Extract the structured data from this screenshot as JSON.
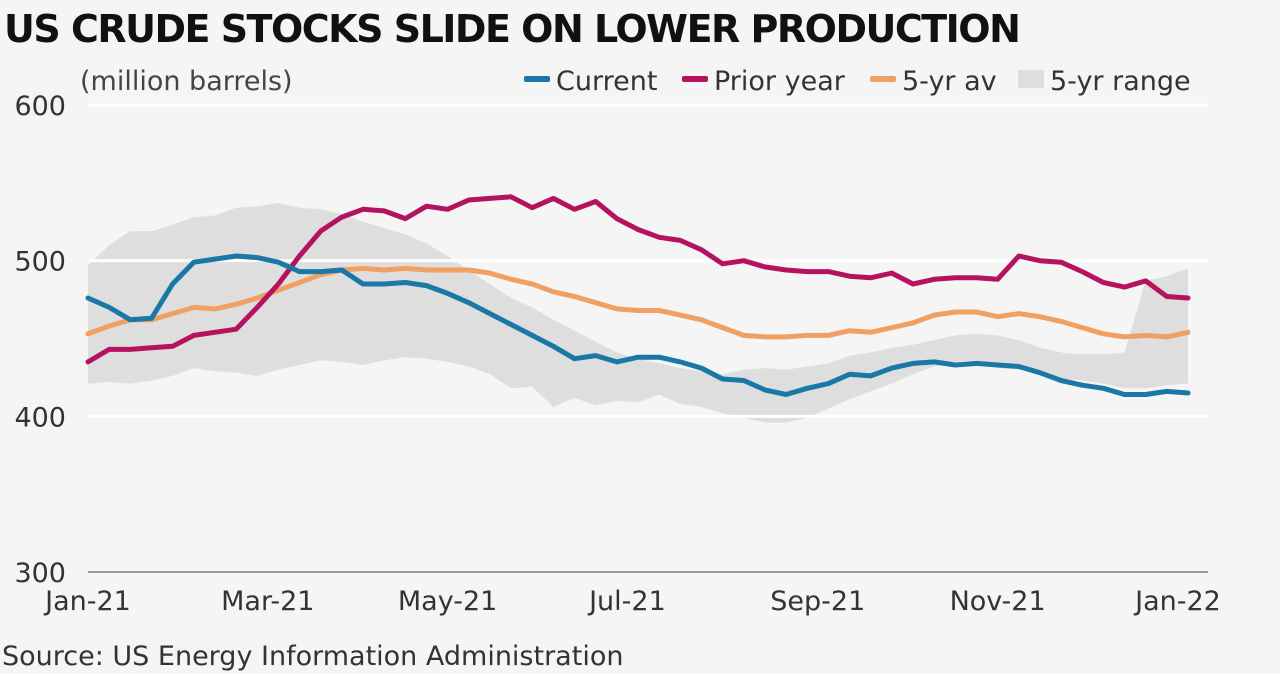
{
  "title": "US CRUDE STOCKS SLIDE ON LOWER PRODUCTION",
  "unit_label": "(million barrels)",
  "source": "Source: US Energy Information Administration",
  "legend": [
    {
      "label": "Current",
      "color": "#1a78a6",
      "kind": "line"
    },
    {
      "label": "Prior year",
      "color": "#b5135f",
      "kind": "line"
    },
    {
      "label": "5-yr av",
      "color": "#f0a062",
      "kind": "line"
    },
    {
      "label": "5-yr range",
      "color": "#dedede",
      "kind": "area"
    }
  ],
  "chart_data": {
    "type": "line",
    "title": "US CRUDE STOCKS SLIDE ON LOWER PRODUCTION",
    "ylabel": "(million barrels)",
    "ylim": [
      300,
      600
    ],
    "yticks": [
      300,
      400,
      500,
      600
    ],
    "grid": true,
    "legend_position": "top-right",
    "x_tick_labels": [
      "Jan-21",
      "Mar-21",
      "May-21",
      "Jul-21",
      "Sep-21",
      "Nov-21",
      "Jan-22"
    ],
    "x_tick_weeks": [
      0,
      8.5,
      17,
      25.5,
      34.5,
      43,
      52
    ],
    "weeks": 52,
    "series": [
      {
        "name": "Current",
        "color": "#1a78a6",
        "values": [
          476,
          470,
          462,
          463,
          485,
          499,
          501,
          503,
          502,
          499,
          493,
          493,
          494,
          485,
          485,
          486,
          484,
          479,
          473,
          466,
          459,
          452,
          445,
          437,
          439,
          435,
          438,
          438,
          435,
          431,
          424,
          423,
          417,
          414,
          418,
          421,
          427,
          426,
          431,
          434,
          435,
          433,
          434,
          433,
          432,
          428,
          423,
          420,
          418,
          414,
          414,
          416,
          415
        ]
      },
      {
        "name": "Prior year",
        "color": "#b5135f",
        "values": [
          435,
          443,
          443,
          444,
          445,
          452,
          454,
          456,
          470,
          485,
          503,
          519,
          528,
          533,
          532,
          527,
          535,
          533,
          539,
          540,
          541,
          534,
          540,
          533,
          538,
          527,
          520,
          515,
          513,
          507,
          498,
          500,
          496,
          494,
          493,
          493,
          490,
          489,
          492,
          485,
          488,
          489,
          489,
          488,
          503,
          500,
          499,
          493,
          486,
          483,
          487,
          477,
          476
        ]
      },
      {
        "name": "5-yr av",
        "color": "#f0a062",
        "values": [
          453,
          458,
          462,
          462,
          466,
          470,
          469,
          472,
          476,
          481,
          486,
          491,
          494,
          495,
          494,
          495,
          494,
          494,
          494,
          492,
          488,
          485,
          480,
          477,
          473,
          469,
          468,
          468,
          465,
          462,
          457,
          452,
          451,
          451,
          452,
          452,
          455,
          454,
          457,
          460,
          465,
          467,
          467,
          464,
          466,
          464,
          461,
          457,
          453,
          451,
          452,
          451,
          454
        ]
      }
    ],
    "range": {
      "name": "5-yr range",
      "color": "#dedede",
      "upper": [
        497,
        510,
        519,
        519,
        523,
        528,
        529,
        534,
        535,
        537,
        534,
        533,
        530,
        525,
        521,
        517,
        511,
        503,
        494,
        485,
        476,
        470,
        462,
        455,
        448,
        441,
        437,
        434,
        431,
        429,
        427,
        430,
        431,
        430,
        432,
        434,
        439,
        441,
        444,
        446,
        449,
        452,
        453,
        452,
        449,
        444,
        441,
        440,
        440,
        441,
        487,
        490,
        495
      ],
      "lower": [
        421,
        422,
        421,
        423,
        426,
        431,
        429,
        428,
        426,
        430,
        433,
        436,
        435,
        433,
        436,
        438,
        437,
        435,
        432,
        427,
        418,
        419,
        406,
        412,
        407,
        410,
        409,
        414,
        408,
        406,
        402,
        399,
        396,
        396,
        399,
        405,
        411,
        416,
        421,
        427,
        432,
        435,
        436,
        431,
        430,
        428,
        424,
        423,
        421,
        418,
        418,
        420,
        421
      ]
    }
  }
}
